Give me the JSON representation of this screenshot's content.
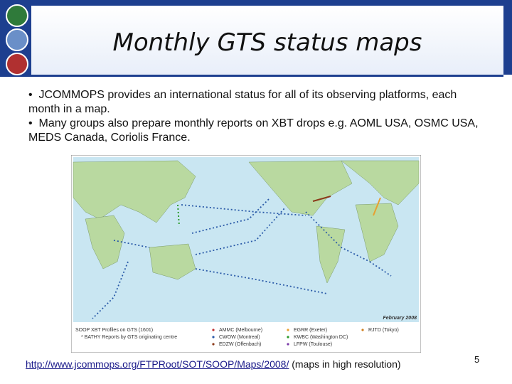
{
  "header": {
    "title": "Monthly GTS status maps"
  },
  "body": {
    "bullets": [
      "JCOMMOPS provides an international status for all of its observing platforms, each month in a map.",
      "Many groups also prepare monthly reports on XBT drops e.g. AOML USA, OSMC USA, MEDS Canada, Coriolis France."
    ]
  },
  "map": {
    "date": "February 2008",
    "legend_title": "SOOP XBT Profiles on GTS (1601)",
    "legend_subtitle": "* BATHY Reports by GTS originating centre",
    "centres": [
      "AMMC (Melbourne)",
      "CWOW (Montreal)",
      "EDZW (Offenbach)",
      "EGRR (Exeter)",
      "KWBC (Washington DC)",
      "LFPW (Toulouse)",
      "RJTD (Tokyo)"
    ]
  },
  "footer": {
    "link": "http://www.jcommops.org/FTPRoot/SOT/SOOP/Maps/2008/",
    "link_note": "(maps in high resolution)",
    "page_number": "5"
  }
}
